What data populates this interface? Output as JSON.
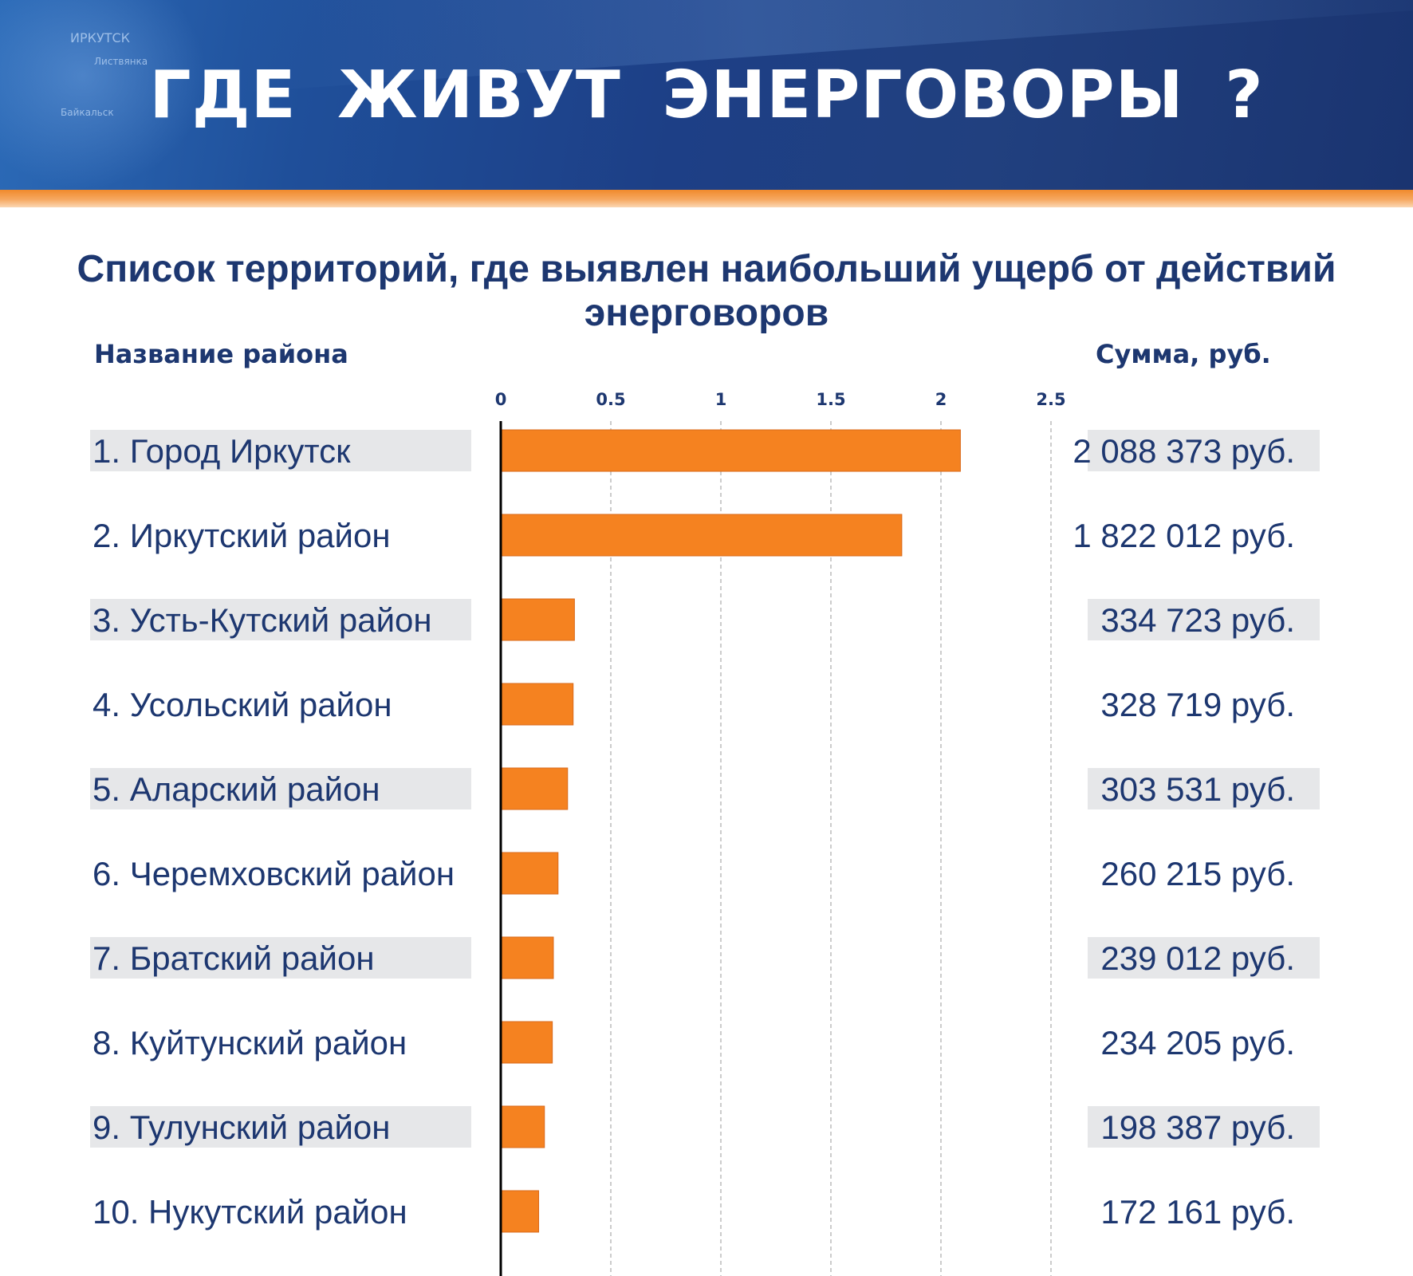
{
  "header": {
    "title": "ГДЕ  ЖИВУТ  ЭНЕРГОВОРЫ ?",
    "map_labels": [
      "Иркутск",
      "Листвянка",
      "Байкальск"
    ]
  },
  "subtitle": "Список территорий, где выявлен наибольший  ущерб от действий энерговоров",
  "columns": {
    "name_header": "Название  района",
    "sum_header": "Сумма,  руб."
  },
  "colors": {
    "banner": "#1f4a94",
    "accent": "#f58220",
    "text": "#1d3770",
    "row_band": "#e6e7e9"
  },
  "chart_data": {
    "type": "bar",
    "orientation": "horizontal",
    "title": "Список территорий, где выявлен наибольший  ущерб от действий энерговоров",
    "xlim": [
      0,
      2.5
    ],
    "xticks": [
      "0",
      "0.5",
      "1",
      "1.5",
      "2",
      "2.5"
    ],
    "grid": true,
    "categories": [
      "1. Город Иркутск",
      "2.  Иркутский район",
      "3.  Усть-Кутский район",
      "4.  Усольский район",
      "5.  Аларский район",
      "6.  Черемховский район",
      "7.  Братский район",
      "8.  Куйтунский район",
      "9.  Тулунский район",
      "10. Нукутский район"
    ],
    "values": [
      2.088373,
      1.822012,
      0.334723,
      0.328719,
      0.303531,
      0.260215,
      0.239012,
      0.234205,
      0.198387,
      0.172161
    ],
    "value_labels": [
      "2 088 373 руб.",
      "1 822 012 руб.",
      "334 723 руб.",
      "328 719 руб.",
      "303 531 руб.",
      "260 215 руб.",
      "239 012 руб.",
      "234 205 руб.",
      "198 387 руб.",
      "172 161 руб."
    ]
  }
}
